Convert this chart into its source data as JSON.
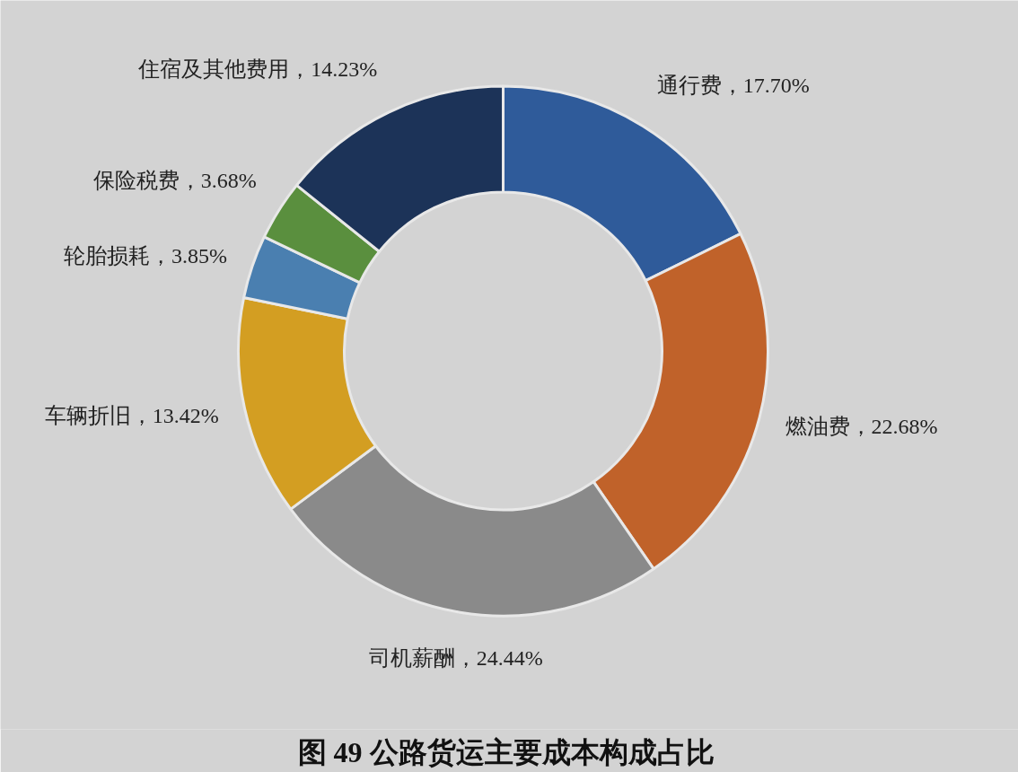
{
  "chart_data": {
    "type": "donut",
    "title": "图 49  公路货运主要成本构成占比",
    "categories": [
      "通行费",
      "燃油费",
      "司机薪酬",
      "车辆折旧",
      "轮胎损耗",
      "保险税费",
      "住宿及其他费用"
    ],
    "values": [
      17.7,
      22.68,
      24.44,
      13.42,
      3.85,
      3.68,
      14.23
    ],
    "colors": [
      "#2f5b9a",
      "#c0622a",
      "#8a8a8a",
      "#d39e22",
      "#4a7fb0",
      "#5a8f3e",
      "#1c3358"
    ],
    "value_labels": [
      "17.70%",
      "22.68%",
      "24.44%",
      "13.42%",
      "3.85%",
      "3.68%",
      "14.23%"
    ],
    "legend": false
  }
}
